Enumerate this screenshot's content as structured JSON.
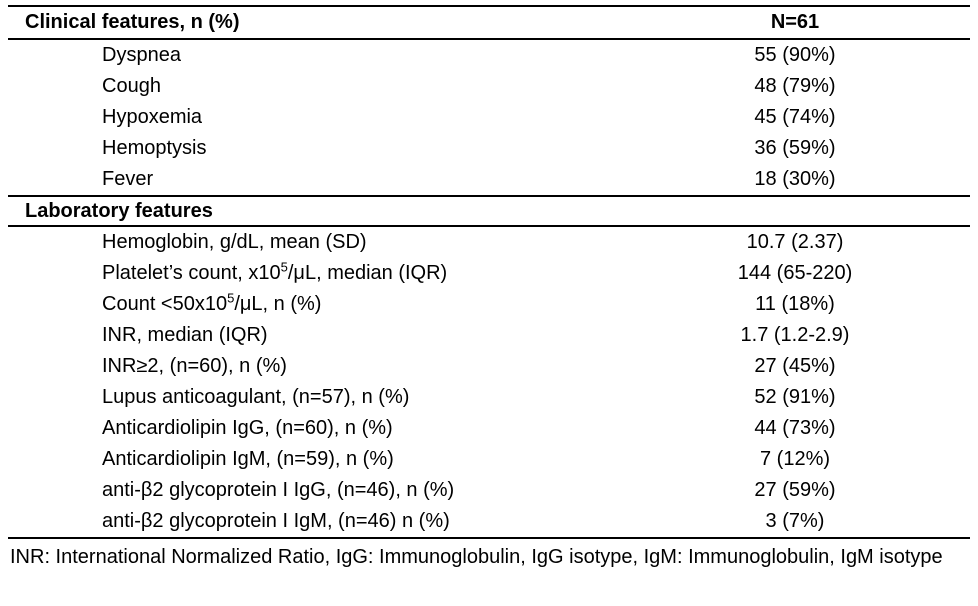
{
  "colors": {
    "text": "#000000",
    "background": "#ffffff",
    "rule": "#000000"
  },
  "table": {
    "header": {
      "label": "Clinical features, n (%)",
      "value": "N=61"
    },
    "sections": [
      {
        "title": "",
        "rows": [
          {
            "label": "Dyspnea",
            "value": "55 (90%)"
          },
          {
            "label": "Cough",
            "value": "48 (79%)"
          },
          {
            "label": "Hypoxemia",
            "value": "45 (74%)"
          },
          {
            "label": "Hemoptysis",
            "value": "36 (59%)"
          },
          {
            "label": "Fever",
            "value": "18 (30%)"
          }
        ]
      },
      {
        "title": "Laboratory features",
        "rows": [
          {
            "label": "Hemoglobin, g/dL, mean (SD)",
            "value": "10.7 (2.37)"
          },
          {
            "label": "Platelet’s count, x10⁵/μL, median (IQR)",
            "value": "144 (65-220)"
          },
          {
            "label": "Count <50x10⁵/μL, n (%)",
            "value": "11 (18%)"
          },
          {
            "label": "INR, median (IQR)",
            "value": "1.7 (1.2-2.9)"
          },
          {
            "label": "INR≥2, (n=60), n (%)",
            "value": "27 (45%)"
          },
          {
            "label": "Lupus anticoagulant, (n=57), n (%)",
            "value": "52 (91%)"
          },
          {
            "label": "Anticardiolipin IgG, (n=60), n (%)",
            "value": "44 (73%)"
          },
          {
            "label": "Anticardiolipin IgM, (n=59), n (%)",
            "value": "7 (12%)"
          },
          {
            "label": "anti-β2 glycoprotein I IgG, (n=46), n (%)",
            "value": "27 (59%)"
          },
          {
            "label": "anti-β2 glycoprotein I IgM, (n=46) n (%)",
            "value": "3 (7%)"
          }
        ]
      }
    ],
    "footnote": "INR: International Normalized Ratio, IgG: Immunoglobulin, IgG isotype, IgM: Immunoglobulin, IgM isotype"
  }
}
